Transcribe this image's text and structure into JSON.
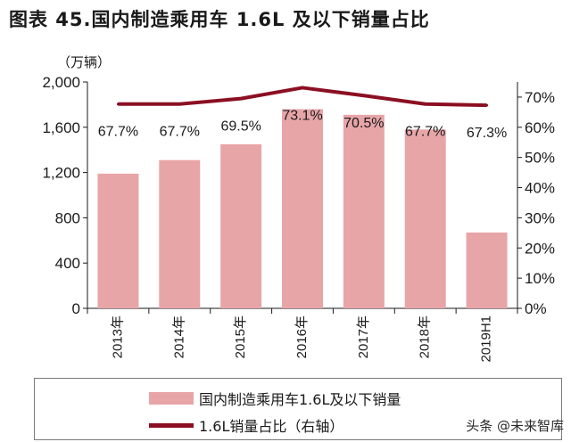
{
  "title": "图表 45.国内制造乘用车 1.6L 及以下销量占比",
  "watermark": "头条 @未来智库",
  "colors": {
    "bar": "#e8a5a8",
    "line": "#8b0f22",
    "axis": "#1a1a1a"
  },
  "chart_data": {
    "type": "bar+line",
    "categories": [
      "2013年",
      "2014年",
      "2015年",
      "2016年",
      "2017年",
      "2018年",
      "2019H1"
    ],
    "series": [
      {
        "name": "国内制造乘用车1.6L及以下销量",
        "type": "bar",
        "axis": "left",
        "values": [
          1190,
          1310,
          1450,
          1760,
          1710,
          1580,
          670
        ]
      },
      {
        "name": "1.6L销量占比（右轴）",
        "type": "line",
        "axis": "right",
        "values": [
          67.7,
          67.7,
          69.5,
          73.1,
          70.5,
          67.7,
          67.3
        ],
        "labels": [
          "67.7%",
          "67.7%",
          "69.5%",
          "73.1%",
          "70.5%",
          "67.7%",
          "67.3%"
        ]
      }
    ],
    "left_axis": {
      "unit": "（万辆）",
      "ylim": [
        0,
        2000
      ],
      "ticks": [
        "0",
        "400",
        "800",
        "1,200",
        "1,600",
        "2,000"
      ],
      "tick_values": [
        0,
        400,
        800,
        1200,
        1600,
        2000
      ]
    },
    "right_axis": {
      "ylim": [
        0,
        75
      ],
      "ticks": [
        "0%",
        "10%",
        "20%",
        "30%",
        "40%",
        "50%",
        "60%",
        "70%"
      ],
      "tick_values": [
        0,
        10,
        20,
        30,
        40,
        50,
        60,
        70
      ]
    },
    "grid": false,
    "legend_position": "bottom"
  }
}
